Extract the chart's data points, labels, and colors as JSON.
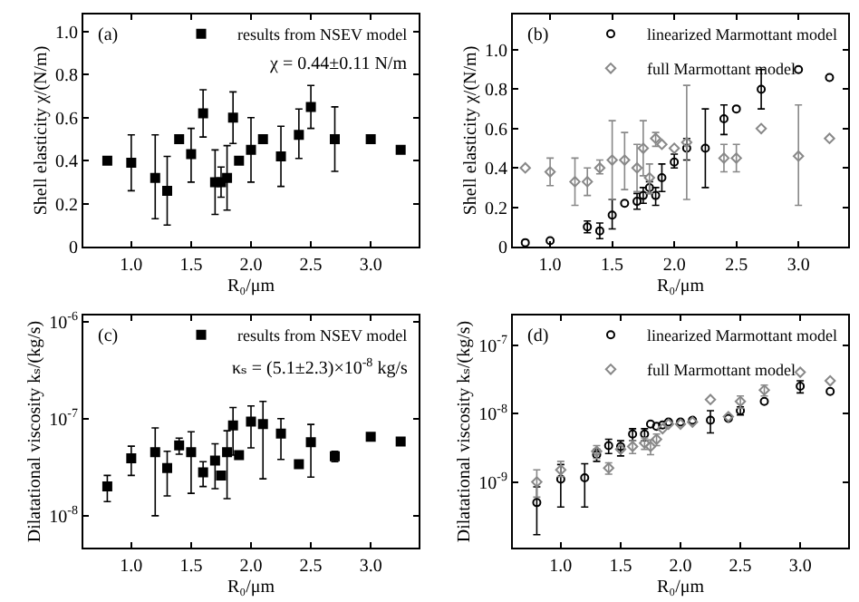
{
  "chart_data": [
    {
      "type": "scatter",
      "xlabel": "R₀/μm",
      "ylabel": "Shell elasticity χ/(N/m)",
      "annotations": [
        "(a)",
        "χ = 0.44±0.11 N/m"
      ],
      "legend": "top right",
      "grid": false,
      "xlim": [
        0.6,
        3.4
      ],
      "xticks": [
        {
          "value": 1,
          "label": "1.0"
        },
        {
          "value": 1.5,
          "label": "1.5"
        },
        {
          "value": 2,
          "label": "2.0"
        },
        {
          "value": 2.5,
          "label": "2.5"
        },
        {
          "value": 3,
          "label": "3.0"
        }
      ],
      "ylim": [
        0,
        1.08
      ],
      "yticks": [
        0,
        {
          "value": 0.2,
          "label": "0.2"
        },
        {
          "value": 0.4,
          "label": "0.4"
        },
        {
          "value": 0.6,
          "label": "0.6"
        },
        {
          "value": 0.8,
          "label": "0.8"
        },
        {
          "value": 1,
          "label": "1.0"
        }
      ],
      "series": [
        {
          "name": "results from NSEV model",
          "color": "#000000",
          "marker": "square",
          "x": [
            0.8,
            1.0,
            1.2,
            1.3,
            1.4,
            1.5,
            1.6,
            1.7,
            1.75,
            1.8,
            1.85,
            1.9,
            2.0,
            2.1,
            2.25,
            2.4,
            2.5,
            2.7,
            3.0,
            3.25
          ],
          "values": [
            0.4,
            0.39,
            0.32,
            0.26,
            0.5,
            0.43,
            0.62,
            0.3,
            0.3,
            0.32,
            0.6,
            0.4,
            0.45,
            0.5,
            0.42,
            0.52,
            0.65,
            0.5,
            0.5,
            0.45
          ],
          "errors": [
            null,
            [
              0.26,
              0.52
            ],
            [
              0.13,
              0.52
            ],
            [
              0.1,
              0.42
            ],
            null,
            [
              0.3,
              0.55
            ],
            [
              0.51,
              0.73
            ],
            [
              0.15,
              0.45
            ],
            [
              0.23,
              0.37
            ],
            [
              0.17,
              0.47
            ],
            [
              0.48,
              0.72
            ],
            null,
            [
              0.3,
              0.6
            ],
            null,
            [
              0.28,
              0.56
            ],
            [
              0.41,
              0.64
            ],
            [
              0.55,
              0.75
            ],
            [
              0.35,
              0.65
            ],
            null,
            null
          ]
        }
      ]
    },
    {
      "type": "scatter",
      "xlabel": "R₀/μm",
      "ylabel": "Shell elasticity χ/(N/m)",
      "annotations": [
        "(b)"
      ],
      "legend": "top right",
      "grid": false,
      "xlim": [
        0.7,
        3.4
      ],
      "xticks": [
        {
          "value": 1,
          "label": "1.0"
        },
        {
          "value": 1.5,
          "label": "1.5"
        },
        {
          "value": 2,
          "label": "2.0"
        },
        {
          "value": 2.5,
          "label": "2.5"
        },
        {
          "value": 3,
          "label": "3.0"
        }
      ],
      "ylim": [
        0,
        1.18
      ],
      "yticks": [
        0,
        {
          "value": 0.2,
          "label": "0.2"
        },
        {
          "value": 0.4,
          "label": "0.4"
        },
        {
          "value": 0.6,
          "label": "0.6"
        },
        {
          "value": 0.8,
          "label": "0.8"
        },
        {
          "value": 1,
          "label": "1.0"
        }
      ],
      "series": [
        {
          "name": "linearized Marmottant model",
          "color": "#000000",
          "marker": "circle",
          "x": [
            0.8,
            1.0,
            1.3,
            1.4,
            1.5,
            1.6,
            1.7,
            1.75,
            1.8,
            1.85,
            1.9,
            2.0,
            2.1,
            2.25,
            2.4,
            2.5,
            2.7,
            3.0,
            3.25
          ],
          "values": [
            0.02,
            0.03,
            0.1,
            0.08,
            0.16,
            0.22,
            0.23,
            0.26,
            0.3,
            0.26,
            0.35,
            0.43,
            0.5,
            0.5,
            0.65,
            0.7,
            0.8,
            0.9,
            0.86
          ],
          "errors": [
            null,
            null,
            [
              0.07,
              0.13
            ],
            [
              0.04,
              0.12
            ],
            [
              0.09,
              0.24
            ],
            null,
            [
              0.19,
              0.27
            ],
            [
              0.22,
              0.3
            ],
            [
              0.27,
              0.33
            ],
            [
              0.21,
              0.3
            ],
            [
              0.28,
              0.42
            ],
            [
              0.4,
              0.47
            ],
            [
              0.44,
              0.55
            ],
            [
              0.3,
              0.7
            ],
            [
              0.57,
              0.72
            ],
            null,
            [
              0.7,
              0.9
            ],
            null,
            null
          ]
        },
        {
          "name": "full Marmottant model",
          "color": "#888888",
          "marker": "diamond",
          "x": [
            0.8,
            1.0,
            1.2,
            1.3,
            1.4,
            1.5,
            1.6,
            1.7,
            1.75,
            1.8,
            1.85,
            1.9,
            2.0,
            2.1,
            2.4,
            2.5,
            2.7,
            3.0,
            3.25
          ],
          "values": [
            0.4,
            0.38,
            0.33,
            0.33,
            0.4,
            0.44,
            0.44,
            0.4,
            0.5,
            0.35,
            0.55,
            0.52,
            0.5,
            0.53,
            0.45,
            0.45,
            0.6,
            0.46,
            0.55
          ],
          "errors": [
            null,
            [
              0.31,
              0.45
            ],
            [
              0.21,
              0.45
            ],
            [
              0.26,
              0.4
            ],
            [
              0.37,
              0.44
            ],
            [
              0.24,
              0.64
            ],
            [
              0.29,
              0.58
            ],
            [
              0.28,
              0.52
            ],
            [
              0.36,
              0.64
            ],
            [
              0.27,
              0.42
            ],
            [
              0.51,
              0.58
            ],
            null,
            null,
            [
              0.24,
              0.82
            ],
            [
              0.38,
              0.52
            ],
            [
              0.38,
              0.52
            ],
            null,
            [
              0.21,
              0.72
            ],
            null
          ]
        }
      ]
    },
    {
      "type": "scatter",
      "xlabel": "R₀/μm",
      "ylabel": "Dilatational viscosity kₛ/(kg/s)",
      "annotations": [
        "(c)",
        "κₛ = (5.1±2.3)×10$^{-8}$ kg/s"
      ],
      "legend": "top right",
      "grid": false,
      "log": "y",
      "xlim": [
        0.6,
        3.4
      ],
      "xticks": [
        {
          "value": 1,
          "label": "1.0"
        },
        {
          "value": 1.5,
          "label": "1.5"
        },
        {
          "value": 2,
          "label": "2.0"
        },
        {
          "value": 2.5,
          "label": "2.5"
        },
        {
          "value": 3,
          "label": "3.0"
        }
      ],
      "ylim": [
        4.7e-09,
        1.15e-06
      ],
      "yticks": [
        {
          "value": 1e-08,
          "label": "10$^{-8}$"
        },
        {
          "value": 1e-07,
          "label": "10$^{-7}$"
        },
        {
          "value": 1e-06,
          "label": "10$^{-6}$"
        }
      ],
      "series": [
        {
          "name": "results from NSEV model",
          "color": "#000000",
          "marker": "square",
          "x": [
            0.8,
            1.0,
            1.2,
            1.3,
            1.4,
            1.5,
            1.6,
            1.7,
            1.75,
            1.8,
            1.85,
            1.9,
            2.0,
            2.1,
            2.25,
            2.4,
            2.5,
            2.7,
            3.0,
            3.25
          ],
          "values": [
            2e-08,
            3.9e-08,
            4.5e-08,
            3.1e-08,
            5.3e-08,
            4.5e-08,
            2.8e-08,
            3.7e-08,
            2.6e-08,
            4.5e-08,
            8.5e-08,
            4.2e-08,
            9.3e-08,
            8.8e-08,
            7e-08,
            3.4e-08,
            5.7e-08,
            4.1e-08,
            6.5e-08,
            5.8e-08
          ],
          "errors": [
            [
              1.4e-08,
              2.6e-08
            ],
            [
              2.6e-08,
              5.2e-08
            ],
            [
              1e-08,
              8e-08
            ],
            [
              1.6e-08,
              4.6e-08
            ],
            [
              4.3e-08,
              6.3e-08
            ],
            [
              1.7e-08,
              7.3e-08
            ],
            [
              2e-08,
              3.6e-08
            ],
            [
              1.9e-08,
              5.5e-08
            ],
            null,
            [
              1.5e-08,
              7.5e-08
            ],
            [
              4.2e-08,
              1.3e-07
            ],
            null,
            [
              5e-08,
              1.35e-07
            ],
            [
              2.4e-08,
              1.5e-07
            ],
            [
              3.8e-08,
              1e-07
            ],
            null,
            [
              2.5e-08,
              8.7e-08
            ],
            [
              3.6e-08,
              4.6e-08
            ],
            null,
            null
          ]
        }
      ]
    },
    {
      "type": "scatter",
      "xlabel": "R₀/μm",
      "ylabel": "Dilatational viscosity kₛ/(kg/s)",
      "annotations": [
        "(d)"
      ],
      "legend": "top right",
      "grid": false,
      "log": "y",
      "xlim": [
        0.6,
        3.4
      ],
      "xticks": [
        {
          "value": 1,
          "label": "1.0"
        },
        {
          "value": 1.5,
          "label": "1.5"
        },
        {
          "value": 2,
          "label": "2.0"
        },
        {
          "value": 2.5,
          "label": "2.5"
        },
        {
          "value": 3,
          "label": "3.0"
        }
      ],
      "ylim": [
        1.1e-10,
        2.7e-07
      ],
      "yticks": [
        {
          "value": 1e-09,
          "label": "10$^{-9}$"
        },
        {
          "value": 1e-08,
          "label": "10$^{-8}$"
        },
        {
          "value": 1e-07,
          "label": "10$^{-7}$"
        }
      ],
      "series": [
        {
          "name": "linearized Marmottant model",
          "color": "#000000",
          "marker": "circle",
          "x": [
            0.8,
            1.0,
            1.2,
            1.3,
            1.4,
            1.5,
            1.6,
            1.7,
            1.75,
            1.8,
            1.85,
            1.9,
            2.0,
            2.1,
            2.25,
            2.4,
            2.5,
            2.7,
            3.0,
            3.25
          ],
          "values": [
            5e-10,
            1.1e-09,
            1.15e-09,
            2.5e-09,
            3.4e-09,
            3.3e-09,
            5e-09,
            5e-09,
            7e-09,
            6.5e-09,
            6.8e-09,
            7.5e-09,
            7.5e-09,
            8e-09,
            8e-09,
            8.5e-09,
            1.1e-08,
            1.5e-08,
            2.5e-08,
            2.1e-08
          ],
          "errors": [
            [
              1.7e-10,
              8.5e-10
            ],
            [
              4.3e-10,
              1.8e-09
            ],
            [
              4.3e-10,
              1.85e-09
            ],
            [
              2e-09,
              3e-09
            ],
            [
              2.6e-09,
              4.2e-09
            ],
            [
              2.4e-09,
              4e-09
            ],
            [
              4e-09,
              6e-09
            ],
            [
              4e-09,
              6e-09
            ],
            null,
            null,
            null,
            null,
            null,
            null,
            [
              5.2e-09,
              1.1e-08
            ],
            null,
            [
              9.5e-09,
              1.25e-08
            ],
            null,
            [
              2e-08,
              3e-08
            ],
            null
          ]
        },
        {
          "name": "full Marmottant model",
          "color": "#888888",
          "marker": "diamond",
          "x": [
            0.8,
            1.0,
            1.3,
            1.4,
            1.5,
            1.6,
            1.7,
            1.75,
            1.8,
            1.85,
            1.9,
            2.0,
            2.1,
            2.25,
            2.4,
            2.5,
            2.7,
            3.0,
            3.25
          ],
          "values": [
            1e-09,
            1.5e-09,
            2.8e-09,
            1.6e-09,
            3e-09,
            3.3e-09,
            3.7e-09,
            3.3e-09,
            4.2e-09,
            6e-09,
            7e-09,
            7e-09,
            7.5e-09,
            1.6e-08,
            9e-09,
            1.5e-08,
            2.2e-08,
            4e-08,
            3e-08
          ],
          "errors": [
            [
              6e-10,
              1.5e-09
            ],
            [
              1.2e-09,
              2e-09
            ],
            [
              2.2e-09,
              3.4e-09
            ],
            [
              1.3e-09,
              1.9e-09
            ],
            null,
            [
              2.6e-09,
              4e-09
            ],
            [
              3e-09,
              4.4e-09
            ],
            [
              2.5e-09,
              4.1e-09
            ],
            [
              3.4e-09,
              5e-09
            ],
            null,
            null,
            null,
            null,
            null,
            null,
            [
              1.2e-08,
              1.8e-08
            ],
            [
              1.8e-08,
              2.6e-08
            ],
            null,
            null
          ]
        }
      ]
    }
  ]
}
